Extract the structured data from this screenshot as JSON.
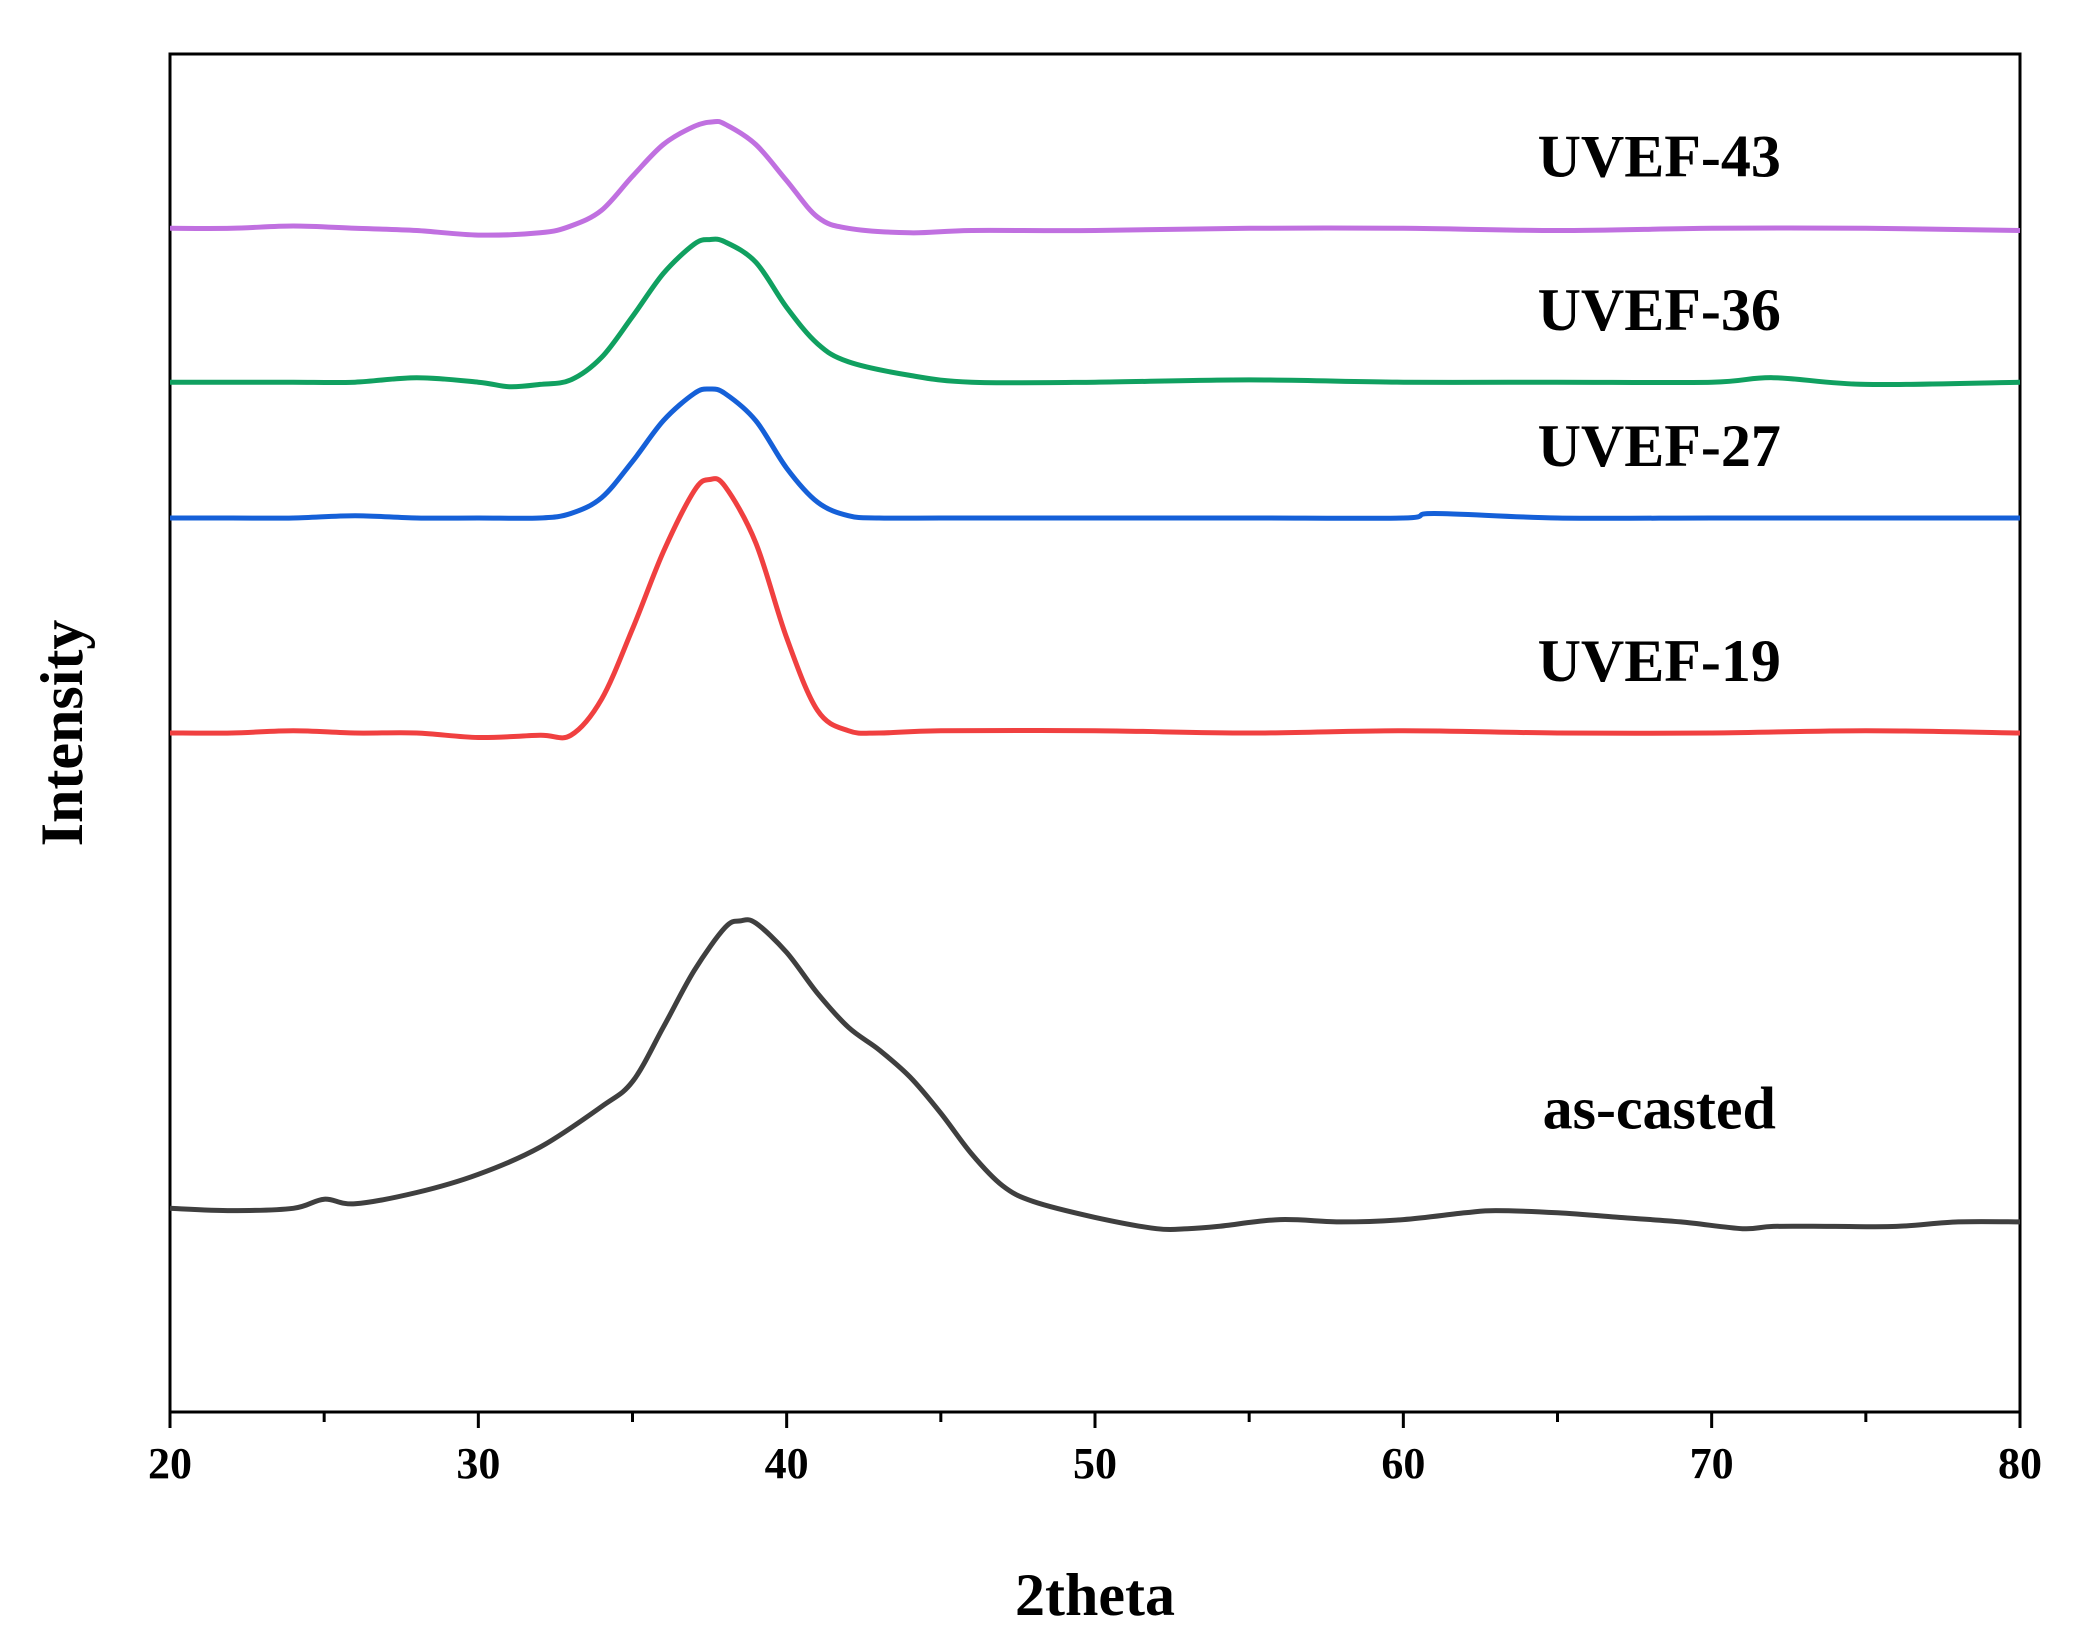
{
  "chart_data": {
    "type": "line",
    "title": "",
    "xlabel": "2theta",
    "ylabel": "Intensity",
    "xlim": [
      20,
      80
    ],
    "ylim": [
      0,
      6
    ],
    "x_ticks": [
      20,
      30,
      40,
      50,
      60,
      70,
      80
    ],
    "x_tick_labels": [
      "20",
      "30",
      "40",
      "50",
      "60",
      "70",
      "80"
    ],
    "y_ticks_shown": false,
    "grid": false,
    "legend": "none (direct labels at right)",
    "series": [
      {
        "name": "as-casted",
        "label": "as-casted",
        "color": "#3f3f3f",
        "baseline": 0.9,
        "points": [
          [
            20,
            0.9
          ],
          [
            22,
            0.89
          ],
          [
            24,
            0.9
          ],
          [
            25,
            0.94
          ],
          [
            26,
            0.92
          ],
          [
            28,
            0.97
          ],
          [
            30,
            1.05
          ],
          [
            32,
            1.17
          ],
          [
            34,
            1.35
          ],
          [
            35,
            1.46
          ],
          [
            36,
            1.7
          ],
          [
            37,
            1.95
          ],
          [
            38,
            2.14
          ],
          [
            38.5,
            2.17
          ],
          [
            39,
            2.16
          ],
          [
            40,
            2.03
          ],
          [
            41,
            1.85
          ],
          [
            42,
            1.7
          ],
          [
            43,
            1.6
          ],
          [
            44,
            1.48
          ],
          [
            45,
            1.32
          ],
          [
            46,
            1.14
          ],
          [
            47,
            1.0
          ],
          [
            48,
            0.93
          ],
          [
            50,
            0.86
          ],
          [
            52,
            0.81
          ],
          [
            53,
            0.81
          ],
          [
            54,
            0.82
          ],
          [
            56,
            0.85
          ],
          [
            58,
            0.84
          ],
          [
            60,
            0.85
          ],
          [
            62,
            0.88
          ],
          [
            63,
            0.89
          ],
          [
            65,
            0.88
          ],
          [
            67,
            0.86
          ],
          [
            69,
            0.84
          ],
          [
            71,
            0.81
          ],
          [
            72,
            0.82
          ],
          [
            74,
            0.82
          ],
          [
            76,
            0.82
          ],
          [
            78,
            0.84
          ],
          [
            80,
            0.84
          ]
        ]
      },
      {
        "name": "UVEF-19",
        "label": "UVEF-19",
        "color": "#f04040",
        "baseline": 3.0,
        "points": [
          [
            20,
            3.0
          ],
          [
            22,
            3.0
          ],
          [
            24,
            3.01
          ],
          [
            26,
            3.0
          ],
          [
            28,
            3.0
          ],
          [
            30,
            2.98
          ],
          [
            32,
            2.99
          ],
          [
            33,
            2.99
          ],
          [
            34,
            3.15
          ],
          [
            35,
            3.46
          ],
          [
            36,
            3.8
          ],
          [
            37,
            4.07
          ],
          [
            37.5,
            4.12
          ],
          [
            38,
            4.09
          ],
          [
            39,
            3.84
          ],
          [
            40,
            3.42
          ],
          [
            41,
            3.1
          ],
          [
            42,
            3.01
          ],
          [
            43,
            3.0
          ],
          [
            45,
            3.01
          ],
          [
            50,
            3.01
          ],
          [
            55,
            3.0
          ],
          [
            60,
            3.01
          ],
          [
            65,
            3.0
          ],
          [
            70,
            3.0
          ],
          [
            75,
            3.01
          ],
          [
            80,
            3.0
          ]
        ]
      },
      {
        "name": "UVEF-27",
        "label": "UVEF-27",
        "color": "#1560d8",
        "baseline": 3.95,
        "points": [
          [
            20,
            3.95
          ],
          [
            22,
            3.95
          ],
          [
            24,
            3.95
          ],
          [
            26,
            3.96
          ],
          [
            28,
            3.95
          ],
          [
            30,
            3.95
          ],
          [
            32,
            3.95
          ],
          [
            33,
            3.97
          ],
          [
            34,
            4.04
          ],
          [
            35,
            4.2
          ],
          [
            36,
            4.38
          ],
          [
            37,
            4.5
          ],
          [
            37.5,
            4.52
          ],
          [
            38,
            4.5
          ],
          [
            39,
            4.38
          ],
          [
            40,
            4.17
          ],
          [
            41,
            4.02
          ],
          [
            42,
            3.96
          ],
          [
            43,
            3.95
          ],
          [
            45,
            3.95
          ],
          [
            50,
            3.95
          ],
          [
            55,
            3.95
          ],
          [
            60,
            3.95
          ],
          [
            61,
            3.97
          ],
          [
            65,
            3.95
          ],
          [
            70,
            3.95
          ],
          [
            75,
            3.95
          ],
          [
            80,
            3.95
          ]
        ]
      },
      {
        "name": "UVEF-36",
        "label": "UVEF-36",
        "color": "#10a060",
        "baseline": 4.55,
        "points": [
          [
            20,
            4.55
          ],
          [
            22,
            4.55
          ],
          [
            24,
            4.55
          ],
          [
            26,
            4.55
          ],
          [
            28,
            4.57
          ],
          [
            30,
            4.55
          ],
          [
            31,
            4.53
          ],
          [
            32,
            4.54
          ],
          [
            33,
            4.56
          ],
          [
            34,
            4.66
          ],
          [
            35,
            4.84
          ],
          [
            36,
            5.03
          ],
          [
            37,
            5.16
          ],
          [
            37.5,
            5.18
          ],
          [
            38,
            5.17
          ],
          [
            39,
            5.08
          ],
          [
            40,
            4.88
          ],
          [
            41,
            4.72
          ],
          [
            42,
            4.64
          ],
          [
            44,
            4.58
          ],
          [
            46,
            4.55
          ],
          [
            50,
            4.55
          ],
          [
            55,
            4.56
          ],
          [
            60,
            4.55
          ],
          [
            65,
            4.55
          ],
          [
            70,
            4.55
          ],
          [
            72,
            4.57
          ],
          [
            75,
            4.54
          ],
          [
            80,
            4.55
          ]
        ]
      },
      {
        "name": "UVEF-43",
        "label": "UVEF-43",
        "color": "#c070e0",
        "baseline": 5.23,
        "points": [
          [
            20,
            5.23
          ],
          [
            22,
            5.23
          ],
          [
            24,
            5.24
          ],
          [
            26,
            5.23
          ],
          [
            28,
            5.22
          ],
          [
            30,
            5.2
          ],
          [
            32,
            5.21
          ],
          [
            33,
            5.24
          ],
          [
            34,
            5.31
          ],
          [
            35,
            5.46
          ],
          [
            36,
            5.6
          ],
          [
            37,
            5.68
          ],
          [
            37.6,
            5.7
          ],
          [
            38,
            5.69
          ],
          [
            39,
            5.6
          ],
          [
            40,
            5.44
          ],
          [
            41,
            5.28
          ],
          [
            42,
            5.23
          ],
          [
            44,
            5.21
          ],
          [
            46,
            5.22
          ],
          [
            50,
            5.22
          ],
          [
            55,
            5.23
          ],
          [
            60,
            5.23
          ],
          [
            65,
            5.22
          ],
          [
            70,
            5.23
          ],
          [
            75,
            5.23
          ],
          [
            80,
            5.22
          ]
        ]
      }
    ]
  }
}
